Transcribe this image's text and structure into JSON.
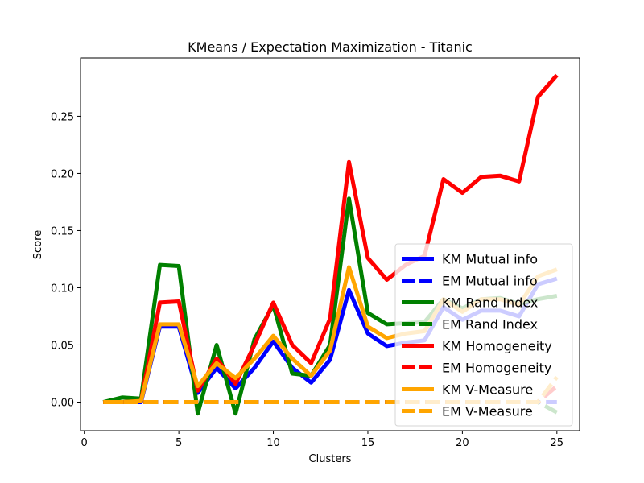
{
  "chart_data": {
    "type": "line",
    "title": "KMeans / Expectation Maximization - Titanic",
    "xlabel": "Clusters",
    "ylabel": "Score",
    "xlim": [
      -0.2,
      26.2
    ],
    "ylim": [
      -0.025,
      0.301
    ],
    "xticks": [
      0,
      5,
      10,
      15,
      20,
      25
    ],
    "xtick_labels": [
      "0",
      "5",
      "10",
      "15",
      "20",
      "25"
    ],
    "yticks": [
      0.0,
      0.05,
      0.1,
      0.15,
      0.2,
      0.25
    ],
    "ytick_labels": [
      "0.00",
      "0.05",
      "0.10",
      "0.15",
      "0.20",
      "0.25"
    ],
    "grid": false,
    "legend_position": "lower right",
    "x": [
      1,
      2,
      3,
      4,
      5,
      6,
      7,
      8,
      9,
      10,
      11,
      12,
      13,
      14,
      15,
      16,
      17,
      18,
      19,
      20,
      21,
      22,
      23,
      24,
      25
    ],
    "series": [
      {
        "name": "KM Mutual info",
        "color": "#0000ff",
        "style": "solid",
        "values": [
          0.0,
          0.0,
          0.0,
          0.066,
          0.066,
          0.008,
          0.03,
          0.012,
          0.03,
          0.053,
          0.03,
          0.017,
          0.037,
          0.098,
          0.06,
          0.049,
          0.052,
          0.054,
          0.083,
          0.072,
          0.08,
          0.08,
          0.075,
          0.103,
          0.108
        ]
      },
      {
        "name": "EM Mutual info",
        "color": "#0000ff",
        "style": "dashed",
        "values": [
          0,
          0,
          0,
          0,
          0,
          0,
          0,
          0,
          0,
          0,
          0,
          0,
          0,
          0,
          0,
          0,
          0,
          0,
          0,
          0,
          0,
          0,
          0,
          0,
          0
        ]
      },
      {
        "name": "KM Rand Index",
        "color": "#008000",
        "style": "solid",
        "values": [
          0.0,
          0.004,
          0.003,
          0.12,
          0.119,
          -0.01,
          0.05,
          -0.01,
          0.055,
          0.085,
          0.025,
          0.023,
          0.05,
          0.178,
          0.078,
          0.068,
          0.069,
          0.07,
          0.09,
          0.082,
          0.09,
          0.091,
          0.086,
          0.09,
          0.093
        ]
      },
      {
        "name": "EM Rand Index",
        "color": "#008000",
        "style": "dashed",
        "values": [
          0,
          0,
          0,
          0,
          0,
          0,
          0,
          0,
          0,
          0,
          0,
          0,
          0,
          0,
          0,
          0,
          0,
          0,
          0,
          0,
          0,
          0,
          0,
          0,
          -0.009
        ]
      },
      {
        "name": "KM Homogeneity",
        "color": "#ff0000",
        "style": "solid",
        "values": [
          0.0,
          0.0,
          0.001,
          0.087,
          0.088,
          0.01,
          0.038,
          0.016,
          0.05,
          0.087,
          0.05,
          0.034,
          0.073,
          0.21,
          0.126,
          0.107,
          0.12,
          0.128,
          0.195,
          0.183,
          0.197,
          0.198,
          0.193,
          0.267,
          0.286
        ]
      },
      {
        "name": "EM Homogeneity",
        "color": "#ff0000",
        "style": "dashed",
        "values": [
          0,
          0,
          0,
          0,
          0,
          0,
          0,
          0,
          0,
          0,
          0,
          0,
          0,
          0,
          0,
          0,
          0,
          0,
          0,
          0,
          0,
          0,
          0,
          0,
          0.014
        ]
      },
      {
        "name": "KM V-Measure",
        "color": "#ffa500",
        "style": "solid",
        "values": [
          0.0,
          0.0,
          0.001,
          0.068,
          0.068,
          0.014,
          0.034,
          0.021,
          0.038,
          0.058,
          0.038,
          0.023,
          0.045,
          0.118,
          0.066,
          0.056,
          0.06,
          0.062,
          0.09,
          0.079,
          0.09,
          0.09,
          0.085,
          0.11,
          0.116
        ]
      },
      {
        "name": "EM V-Measure",
        "color": "#ffa500",
        "style": "dashed",
        "values": [
          0,
          0,
          0,
          0,
          0,
          0,
          0,
          0,
          0,
          0,
          0,
          0,
          0,
          0,
          0,
          0,
          0,
          0,
          0,
          0,
          0,
          0,
          0,
          0,
          0.022
        ]
      }
    ]
  }
}
